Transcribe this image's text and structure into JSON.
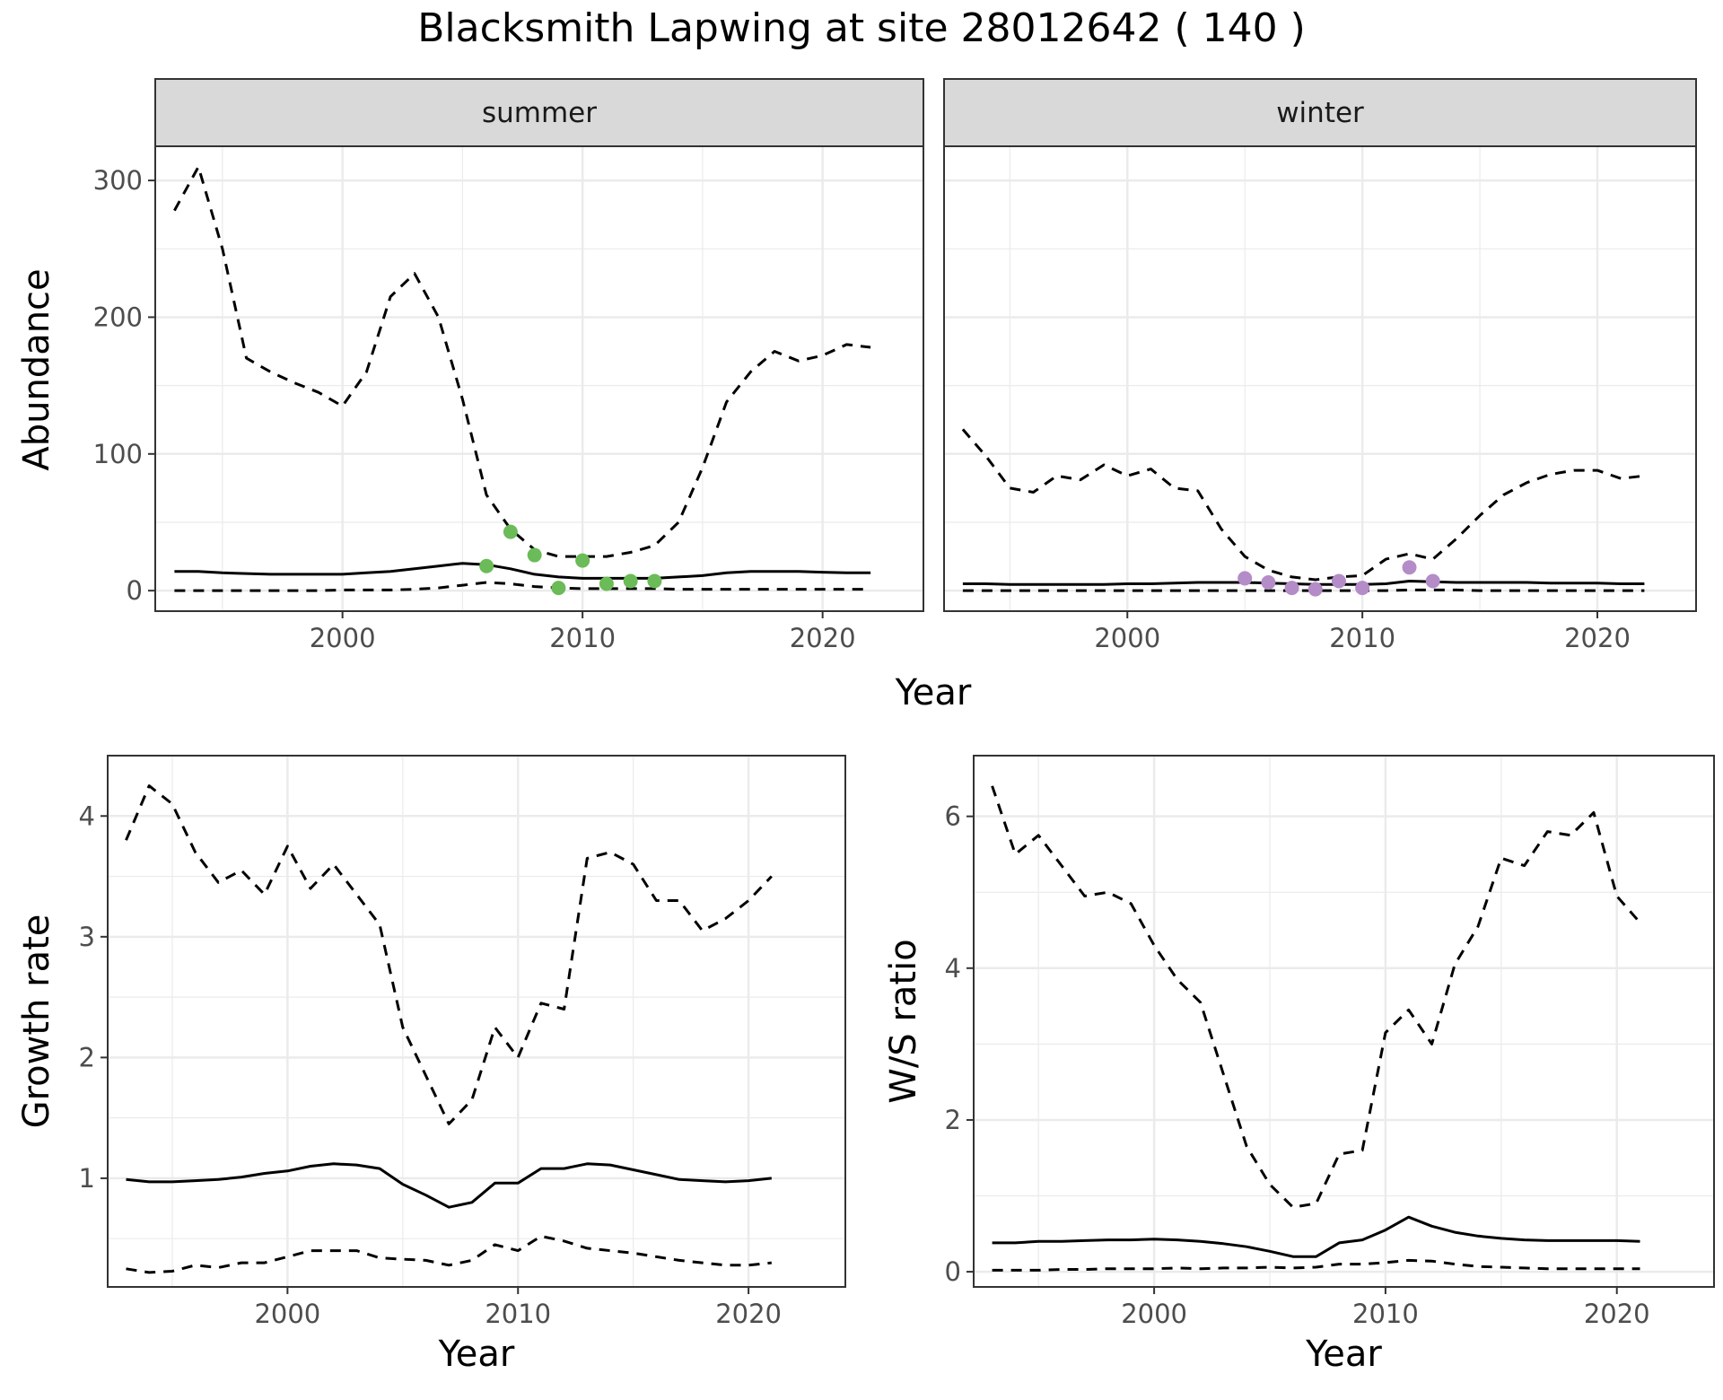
{
  "title": "Blacksmith Lapwing at site 28012642 ( 140 )",
  "colors": {
    "summer_points": "#6bbb58",
    "winter_points": "#b48cc8",
    "line": "#000000",
    "strip": "#d9d9d9",
    "grid": "#ebebeb"
  },
  "chart_data": [
    {
      "type": "line",
      "facet": "summer",
      "xlabel": "Year",
      "ylabel": "Abundance",
      "xlim": [
        1992.2,
        2024.2
      ],
      "ylim": [
        -15,
        325
      ],
      "xticks": [
        2000,
        2010,
        2020
      ],
      "yticks": [
        0,
        100,
        200,
        300
      ],
      "grid": true,
      "x": [
        1993,
        1994,
        1995,
        1996,
        1997,
        1998,
        1999,
        2000,
        2001,
        2002,
        2003,
        2004,
        2005,
        2006,
        2007,
        2008,
        2009,
        2010,
        2011,
        2012,
        2013,
        2014,
        2015,
        2016,
        2017,
        2018,
        2019,
        2020,
        2021,
        2022
      ],
      "series": [
        {
          "style": "dashed",
          "values": [
            278,
            310,
            250,
            170,
            160,
            152,
            145,
            135,
            160,
            215,
            232,
            200,
            140,
            70,
            45,
            30,
            25,
            25,
            25,
            28,
            33,
            50,
            90,
            138,
            160,
            175,
            168,
            172,
            180,
            178
          ]
        },
        {
          "style": "solid",
          "values": [
            14,
            14,
            13,
            12.5,
            12,
            12,
            12,
            12,
            13,
            14,
            16,
            18,
            20,
            19,
            16,
            12,
            10,
            9,
            9,
            9,
            9,
            10,
            11,
            13,
            14,
            14,
            14,
            13.5,
            13,
            13
          ]
        },
        {
          "style": "dashed",
          "values": [
            0,
            0,
            0,
            0,
            0,
            0,
            0,
            0.5,
            0.5,
            0.5,
            1,
            2,
            4,
            6,
            5,
            3,
            2,
            1.5,
            1.5,
            1.5,
            1.5,
            1,
            1,
            1,
            1,
            1,
            1,
            1,
            1,
            1
          ]
        }
      ],
      "points": {
        "x": [
          2006,
          2007,
          2008,
          2009,
          2010,
          2011,
          2012,
          2013
        ],
        "y": [
          18,
          43,
          26,
          2,
          22,
          5,
          7,
          7
        ]
      }
    },
    {
      "type": "line",
      "facet": "winter",
      "xlabel": "Year",
      "xlim": [
        1992.2,
        2024.2
      ],
      "ylim": [
        -15,
        325
      ],
      "xticks": [
        2000,
        2010,
        2020
      ],
      "grid": true,
      "x": [
        1993,
        1994,
        1995,
        1996,
        1997,
        1998,
        1999,
        2000,
        2001,
        2002,
        2003,
        2004,
        2005,
        2006,
        2007,
        2008,
        2009,
        2010,
        2011,
        2012,
        2013,
        2014,
        2015,
        2016,
        2017,
        2018,
        2019,
        2020,
        2021,
        2022
      ],
      "series": [
        {
          "style": "dashed",
          "values": [
            118,
            98,
            75,
            72,
            84,
            81,
            92,
            84,
            89,
            75,
            73,
            45,
            25,
            15,
            10,
            8,
            10,
            11,
            23,
            27,
            23,
            38,
            55,
            70,
            79,
            85,
            88,
            88,
            82,
            84
          ]
        },
        {
          "style": "solid",
          "values": [
            5,
            5,
            4.5,
            4.5,
            4.5,
            4.5,
            4.5,
            5,
            5,
            5.5,
            6,
            6,
            6,
            5.5,
            5,
            4.5,
            4.5,
            4.5,
            5,
            7,
            6.5,
            6,
            6,
            6,
            6,
            5.5,
            5.5,
            5.5,
            5,
            5
          ]
        },
        {
          "style": "dashed",
          "values": [
            0,
            0,
            0,
            0,
            0,
            0,
            0,
            0,
            0,
            0,
            0,
            0,
            0,
            0,
            0,
            0,
            0,
            0,
            0,
            0.5,
            0.5,
            0.5,
            0,
            0,
            0,
            0,
            0,
            0,
            0,
            0
          ]
        }
      ],
      "points": {
        "x": [
          2005,
          2006,
          2007,
          2008,
          2009,
          2010,
          2012,
          2013
        ],
        "y": [
          9,
          6,
          2,
          1,
          7,
          2,
          17,
          7
        ]
      }
    },
    {
      "type": "line",
      "xlabel": "Year",
      "ylabel": "Growth rate",
      "xlim": [
        1992.2,
        2024.2
      ],
      "ylim": [
        0.1,
        4.5
      ],
      "xticks": [
        2000,
        2010,
        2020
      ],
      "yticks": [
        1,
        2,
        3,
        4
      ],
      "grid": true,
      "x": [
        1993,
        1994,
        1995,
        1996,
        1997,
        1998,
        1999,
        2000,
        2001,
        2002,
        2003,
        2004,
        2005,
        2006,
        2007,
        2008,
        2009,
        2010,
        2011,
        2012,
        2013,
        2014,
        2015,
        2016,
        2017,
        2018,
        2019,
        2020,
        2021
      ],
      "series": [
        {
          "style": "dashed",
          "values": [
            3.8,
            4.25,
            4.1,
            3.7,
            3.45,
            3.55,
            3.35,
            3.75,
            3.4,
            3.6,
            3.35,
            3.1,
            2.25,
            1.85,
            1.45,
            1.65,
            2.25,
            2.0,
            2.45,
            2.4,
            3.65,
            3.7,
            3.6,
            3.3,
            3.3,
            3.05,
            3.15,
            3.3,
            3.5
          ]
        },
        {
          "style": "solid",
          "values": [
            0.99,
            0.97,
            0.97,
            0.98,
            0.99,
            1.01,
            1.04,
            1.06,
            1.1,
            1.12,
            1.11,
            1.08,
            0.95,
            0.86,
            0.76,
            0.8,
            0.96,
            0.96,
            1.08,
            1.08,
            1.12,
            1.11,
            1.07,
            1.03,
            0.99,
            0.98,
            0.97,
            0.98,
            1.0
          ]
        },
        {
          "style": "dashed",
          "values": [
            0.25,
            0.22,
            0.23,
            0.28,
            0.26,
            0.3,
            0.3,
            0.35,
            0.4,
            0.4,
            0.4,
            0.34,
            0.33,
            0.32,
            0.28,
            0.32,
            0.45,
            0.4,
            0.52,
            0.48,
            0.42,
            0.4,
            0.38,
            0.35,
            0.32,
            0.3,
            0.28,
            0.28,
            0.3
          ]
        }
      ]
    },
    {
      "type": "line",
      "xlabel": "Year",
      "ylabel": "W/S ratio",
      "xlim": [
        1992.2,
        2024.2
      ],
      "ylim": [
        -0.2,
        6.8
      ],
      "xticks": [
        2000,
        2010,
        2020
      ],
      "yticks": [
        0,
        2,
        4,
        6
      ],
      "grid": true,
      "x": [
        1993,
        1994,
        1995,
        1996,
        1997,
        1998,
        1999,
        2000,
        2001,
        2002,
        2003,
        2004,
        2005,
        2006,
        2007,
        2008,
        2009,
        2010,
        2011,
        2012,
        2013,
        2014,
        2015,
        2016,
        2017,
        2018,
        2019,
        2020,
        2021
      ],
      "series": [
        {
          "style": "dashed",
          "values": [
            6.4,
            5.5,
            5.75,
            5.35,
            4.95,
            5.0,
            4.85,
            4.3,
            3.85,
            3.55,
            2.6,
            1.65,
            1.15,
            0.85,
            0.9,
            1.55,
            1.6,
            3.15,
            3.45,
            3.0,
            4.05,
            4.55,
            5.45,
            5.35,
            5.8,
            5.75,
            6.05,
            4.95,
            4.6
          ]
        },
        {
          "style": "solid",
          "values": [
            0.38,
            0.38,
            0.4,
            0.4,
            0.41,
            0.42,
            0.42,
            0.43,
            0.42,
            0.4,
            0.37,
            0.33,
            0.27,
            0.2,
            0.2,
            0.38,
            0.42,
            0.55,
            0.72,
            0.6,
            0.52,
            0.47,
            0.44,
            0.42,
            0.41,
            0.41,
            0.41,
            0.41,
            0.4
          ]
        },
        {
          "style": "dashed",
          "values": [
            0.02,
            0.02,
            0.02,
            0.03,
            0.03,
            0.04,
            0.04,
            0.04,
            0.05,
            0.04,
            0.05,
            0.05,
            0.06,
            0.05,
            0.06,
            0.1,
            0.1,
            0.12,
            0.15,
            0.14,
            0.1,
            0.07,
            0.06,
            0.05,
            0.04,
            0.04,
            0.04,
            0.04,
            0.04
          ]
        }
      ]
    }
  ]
}
